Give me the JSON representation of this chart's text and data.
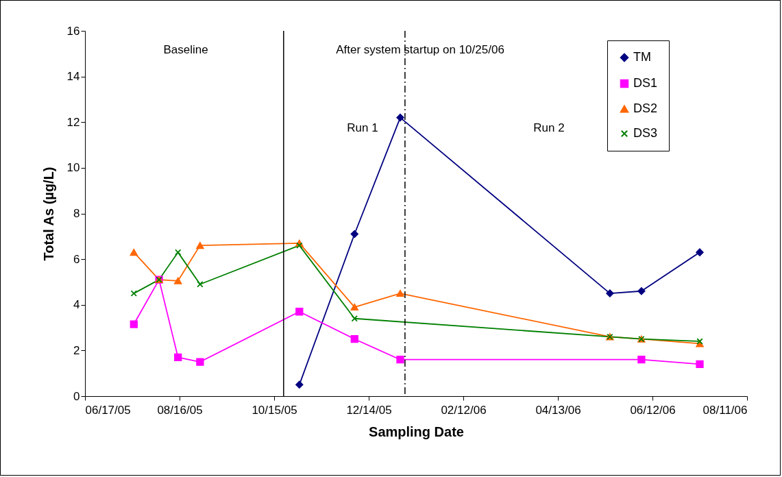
{
  "chart_data": {
    "type": "line",
    "xlabel": "Sampling Date",
    "ylabel": "Total As (µg/L)",
    "xlim": [
      "2005-06-17",
      "2006-08-11"
    ],
    "xticks": [
      {
        "value": "2005-06-17",
        "label": "06/17/05"
      },
      {
        "value": "2005-08-16",
        "label": "08/16/05"
      },
      {
        "value": "2005-10-15",
        "label": "10/15/05"
      },
      {
        "value": "2005-12-14",
        "label": "12/14/05"
      },
      {
        "value": "2006-02-12",
        "label": "02/12/06"
      },
      {
        "value": "2006-04-13",
        "label": "04/13/06"
      },
      {
        "value": "2006-06-12",
        "label": "06/12/06"
      },
      {
        "value": "2006-08-11",
        "label": "08/11/06"
      }
    ],
    "ylim": [
      0,
      16
    ],
    "yticks": [
      0,
      2,
      4,
      6,
      8,
      10,
      12,
      14,
      16
    ],
    "grid": false,
    "legend": "top right",
    "series": [
      {
        "name": "TM",
        "color": "#000080",
        "marker": "diamond",
        "x": [
          "2005-10-31",
          "2005-12-05",
          "2006-01-03",
          "2006-05-16",
          "2006-06-05",
          "2006-07-12"
        ],
        "values": [
          0.5,
          7.1,
          12.2,
          4.5,
          4.6,
          6.3
        ]
      },
      {
        "name": "DS1",
        "color": "#ff00ff",
        "marker": "square",
        "x": [
          "2005-07-18",
          "2005-08-03",
          "2005-08-15",
          "2005-08-29",
          "2005-10-31",
          "2005-12-05",
          "2006-01-03",
          "2006-06-05",
          "2006-07-12"
        ],
        "values": [
          3.15,
          5.1,
          1.7,
          1.5,
          3.7,
          2.5,
          1.6,
          1.6,
          1.4
        ]
      },
      {
        "name": "DS2",
        "color": "#ff6600",
        "marker": "triangle",
        "x": [
          "2005-07-18",
          "2005-08-03",
          "2005-08-15",
          "2005-08-29",
          "2005-10-31",
          "2005-12-05",
          "2006-01-03",
          "2006-05-16",
          "2006-06-05",
          "2006-07-12"
        ],
        "values": [
          6.3,
          5.1,
          5.05,
          6.6,
          6.7,
          3.9,
          4.5,
          2.6,
          2.5,
          2.3
        ]
      },
      {
        "name": "DS3",
        "color": "#008000",
        "marker": "cross",
        "x": [
          "2005-07-18",
          "2005-08-03",
          "2005-08-15",
          "2005-08-29",
          "2005-10-31",
          "2005-12-05",
          "2006-05-16",
          "2006-06-05",
          "2006-07-12"
        ],
        "values": [
          4.5,
          5.1,
          6.3,
          4.9,
          6.6,
          3.4,
          2.6,
          2.5,
          2.4
        ]
      }
    ],
    "ref_lines": [
      {
        "axis": "x",
        "value": "2005-10-21",
        "color": "#000000",
        "line_style": "solid"
      },
      {
        "axis": "x",
        "value": "2006-01-06",
        "color": "#000000",
        "line_style": "dashed"
      }
    ],
    "annotations": [
      "Baseline",
      "After system startup on 10/25/06",
      "Run 1",
      "Run 2"
    ]
  }
}
